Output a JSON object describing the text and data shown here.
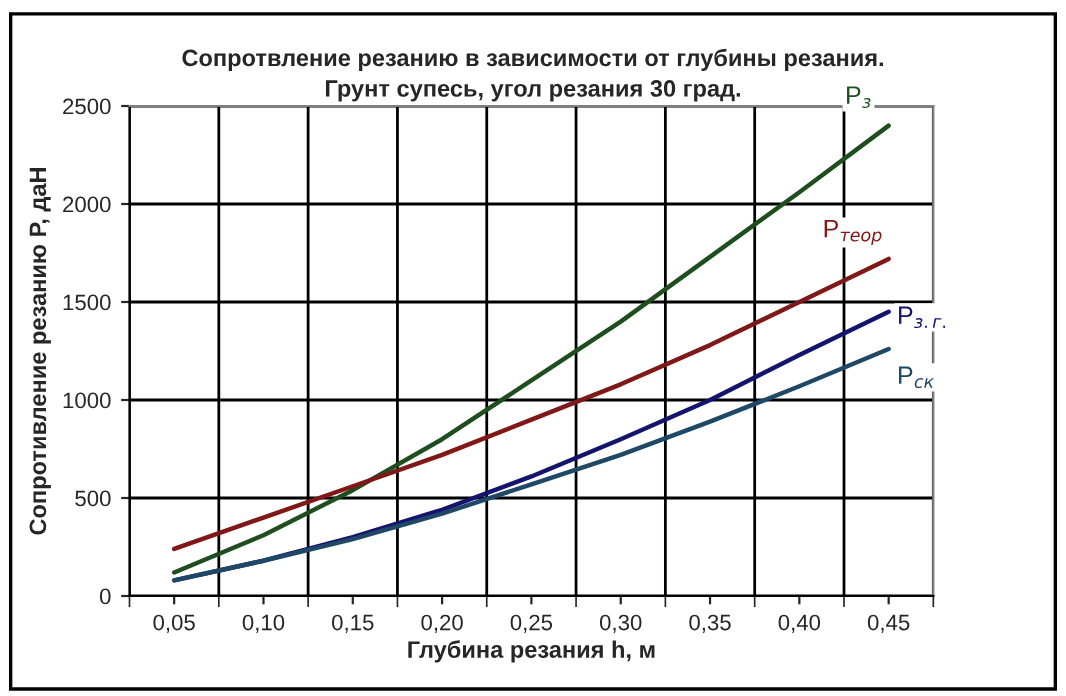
{
  "chart_data": {
    "type": "line",
    "title": "Сопротвление резанию в зависимости от глубины резания.\nГрунт супесь, угол резания 30 град.",
    "xlabel": "Глубина резания h, м",
    "ylabel": "Сопротивление резанию P, даН",
    "categories": [
      "0,05",
      "0,10",
      "0,15",
      "0,20",
      "0,25",
      "0,30",
      "0,35",
      "0,40",
      "0,45"
    ],
    "series": [
      {
        "name": "P$_{з}$",
        "color": "#1e4d1e",
        "values": [
          120,
          310,
          540,
          800,
          1100,
          1400,
          1730,
          2060,
          2400
        ]
      },
      {
        "name": "P$_{теор}$",
        "color": "#801818",
        "values": [
          240,
          400,
          560,
          720,
          900,
          1080,
          1280,
          1500,
          1720
        ]
      },
      {
        "name": "P$_{з.г.}$",
        "color": "#14146e",
        "values": [
          80,
          180,
          300,
          440,
          610,
          800,
          1000,
          1230,
          1450
        ]
      },
      {
        "name": "P$_{ск}$",
        "color": "#1f4866",
        "values": [
          80,
          180,
          290,
          420,
          570,
          720,
          890,
          1070,
          1260
        ]
      }
    ],
    "ylim": [
      0,
      2500
    ],
    "yticks": [
      0,
      500,
      1000,
      1500,
      2000,
      2500
    ],
    "grid": true,
    "marker": "none",
    "line_style": "solid"
  }
}
